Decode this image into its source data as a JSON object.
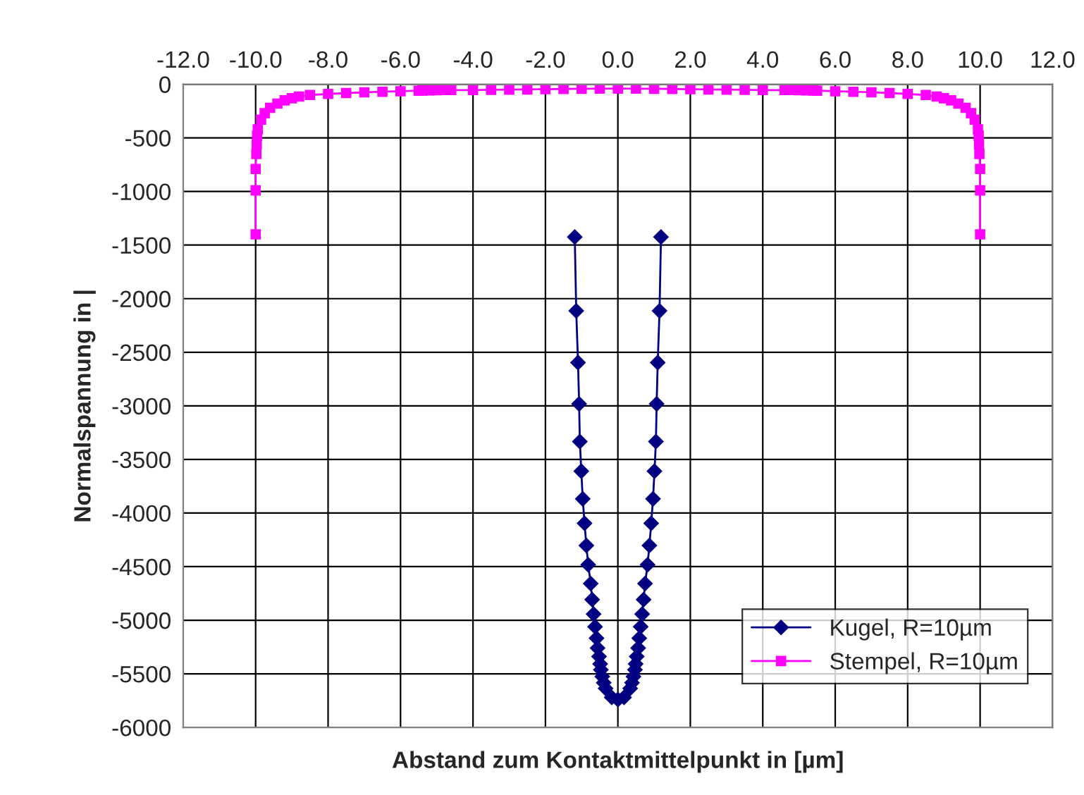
{
  "chart_data": {
    "type": "line",
    "xlabel": "Abstand zum Kontaktmittelpunkt in [µm]",
    "ylabel": "Normalspannung in |",
    "xlim": [
      -12,
      12
    ],
    "ylim": [
      -6000,
      0
    ],
    "xticks": [
      {
        "value": -12,
        "label": "-12.0"
      },
      {
        "value": -10,
        "label": "-10.0"
      },
      {
        "value": -8,
        "label": "-8.0"
      },
      {
        "value": -6,
        "label": "-6.0"
      },
      {
        "value": -4,
        "label": "-4.0"
      },
      {
        "value": -2,
        "label": "-2.0"
      },
      {
        "value": 0,
        "label": "0.0"
      },
      {
        "value": 2,
        "label": "2.0"
      },
      {
        "value": 4,
        "label": "4.0"
      },
      {
        "value": 6,
        "label": "6.0"
      },
      {
        "value": 8,
        "label": "8.0"
      },
      {
        "value": 10,
        "label": "10.0"
      },
      {
        "value": 12,
        "label": "12.0"
      }
    ],
    "yticks": [
      0,
      -500,
      -1000,
      -1500,
      -2000,
      -2500,
      -3000,
      -3500,
      -4000,
      -4500,
      -5000,
      -5500,
      -6000
    ],
    "grid": true,
    "legend": "bottom right",
    "series": [
      {
        "name": "Kugel, R=10µm",
        "color": "#000080",
        "marker": "diamond",
        "x": [
          -1.19,
          -1.15,
          -1.1,
          -1.07,
          -1.05,
          -1.01,
          -0.97,
          -0.92,
          -0.87,
          -0.82,
          -0.75,
          -0.71,
          -0.67,
          -0.63,
          -0.59,
          -0.56,
          -0.52,
          -0.49,
          -0.47,
          -0.43,
          -0.39,
          -0.34,
          -0.17,
          0.0,
          0.17,
          0.34,
          0.39,
          0.43,
          0.47,
          0.49,
          0.52,
          0.56,
          0.59,
          0.63,
          0.67,
          0.71,
          0.75,
          0.82,
          0.87,
          0.92,
          0.97,
          1.01,
          1.05,
          1.07,
          1.1,
          1.15,
          1.19
        ],
        "values": [
          -1425,
          -2114,
          -2596,
          -2982,
          -3333,
          -3610,
          -3868,
          -4096,
          -4303,
          -4482,
          -4658,
          -4807,
          -4943,
          -5061,
          -5167,
          -5259,
          -5338,
          -5408,
          -5461,
          -5526,
          -5583,
          -5636,
          -5720,
          -5740,
          -5720,
          -5636,
          -5583,
          -5526,
          -5461,
          -5408,
          -5338,
          -5259,
          -5167,
          -5061,
          -4943,
          -4807,
          -4658,
          -4482,
          -4303,
          -4096,
          -3868,
          -3610,
          -3333,
          -2982,
          -2596,
          -2114,
          -1425
        ]
      },
      {
        "name": "Stempel, R=10µm",
        "color": "#ff00ff",
        "marker": "square",
        "x": [
          -10.0,
          -10.0,
          -10.0,
          -9.98,
          -9.97,
          -9.96,
          -9.94,
          -9.85,
          -9.75,
          -9.6,
          -9.4,
          -9.2,
          -9.0,
          -8.8,
          -8.5,
          -8.0,
          -7.5,
          -7.0,
          -6.5,
          -6.0,
          -5.5,
          -5.4,
          -5.2,
          -5.0,
          -4.8,
          -4.6,
          -4.0,
          -3.5,
          -3.0,
          -2.5,
          -2.0,
          -1.5,
          -1.0,
          -0.5,
          0.0,
          0.5,
          1.0,
          1.5,
          2.0,
          2.5,
          3.0,
          3.5,
          4.0,
          4.6,
          4.8,
          5.0,
          5.2,
          5.4,
          5.5,
          6.0,
          6.5,
          7.0,
          7.5,
          8.0,
          8.5,
          8.8,
          9.0,
          9.2,
          9.4,
          9.6,
          9.75,
          9.85,
          9.94,
          9.96,
          9.97,
          9.98,
          10.0,
          10.0,
          10.0
        ],
        "values": [
          -1400,
          -990,
          -790,
          -650,
          -560,
          -480,
          -420,
          -330,
          -270,
          -220,
          -180,
          -150,
          -130,
          -115,
          -100,
          -90,
          -82,
          -75,
          -70,
          -65,
          -60,
          -58,
          -56,
          -55,
          -54,
          -54,
          -54,
          -52,
          -50,
          -48,
          -46,
          -44,
          -42,
          -41,
          -40,
          -41,
          -42,
          -44,
          -46,
          -48,
          -50,
          -52,
          -54,
          -54,
          -54,
          -55,
          -56,
          -58,
          -60,
          -65,
          -70,
          -75,
          -82,
          -90,
          -100,
          -115,
          -130,
          -150,
          -180,
          -220,
          -270,
          -330,
          -420,
          -480,
          -560,
          -650,
          -790,
          -990,
          -1400
        ]
      }
    ]
  }
}
